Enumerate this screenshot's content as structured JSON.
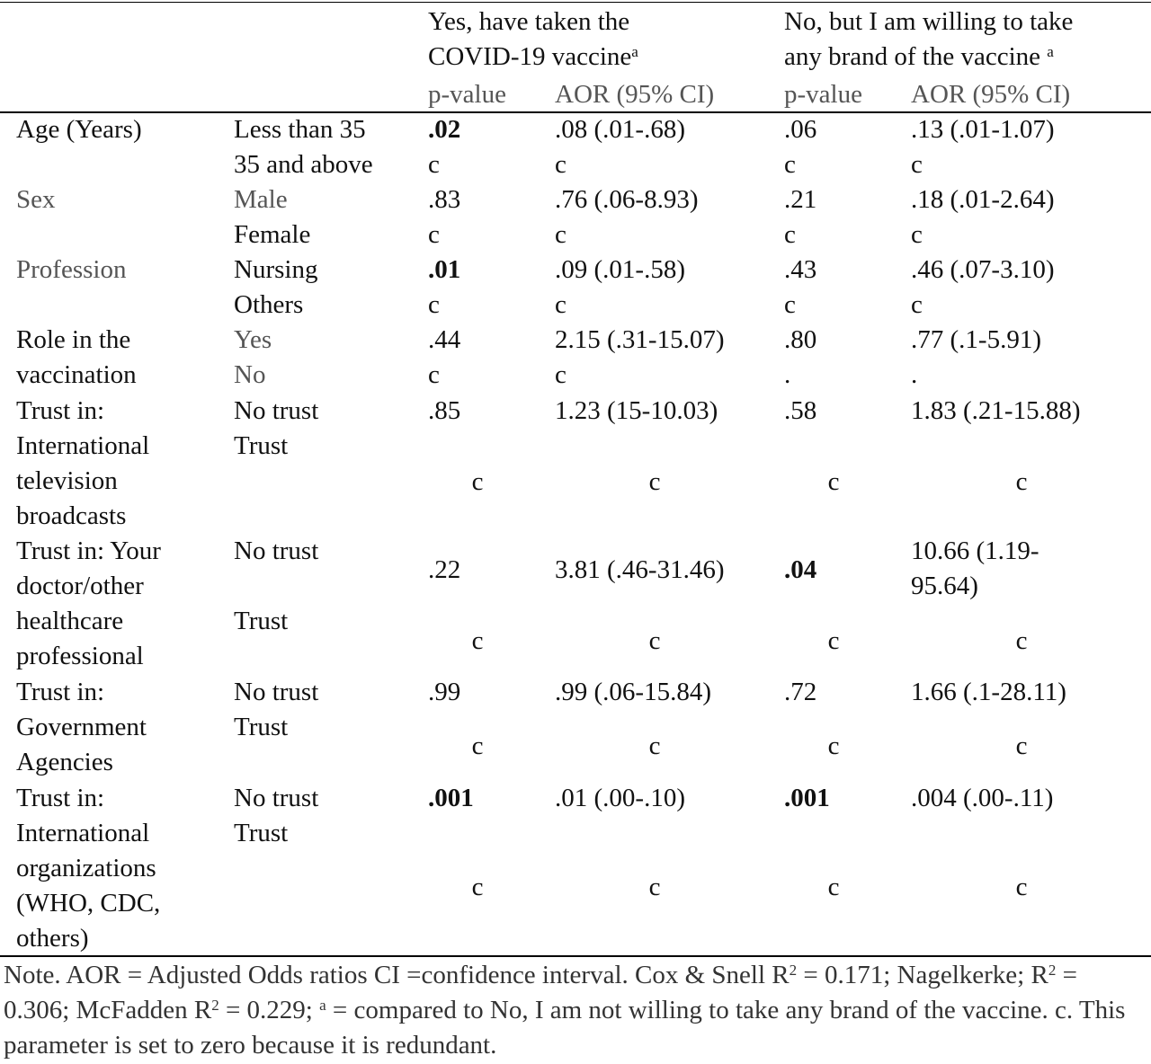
{
  "header": {
    "group1_line1": "Yes, have taken the",
    "group1_line2": "COVID-19 vaccine",
    "group1_sup": "a",
    "group2_line1": "No, but I am willing to take",
    "group2_line2": "any brand of the vaccine",
    "group2_sup": "a",
    "pvalue": "p-value",
    "aor": "AOR (95% CI)"
  },
  "rows": {
    "age": {
      "var": "Age (Years)",
      "cat1": "Less than 35",
      "cat2": "35 and above",
      "p1": ".02",
      "aor1": ".08 (.01-.68)",
      "p2": ".06",
      "aor2": ".13 (.01-1.07)"
    },
    "sex": {
      "var": "Sex",
      "cat1": "Male",
      "cat2": "Female",
      "p1": ".83",
      "aor1": ".76 (.06-8.93)",
      "p2": ".21",
      "aor2": ".18 (.01-2.64)"
    },
    "profession": {
      "var": "Profession",
      "cat1": "Nursing",
      "cat2": "Others",
      "p1": ".01",
      "aor1": ".09 (.01-.58)",
      "p2": ".43",
      "aor2": ".46 (.07-3.10)"
    },
    "role": {
      "var_l1": "Role in the",
      "var_l2": "vaccination",
      "cat1": "Yes",
      "cat2": "No",
      "p1": ".44",
      "aor1": "2.15 (.31-15.07)",
      "p2": ".80",
      "aor2": ".77 (.1-5.91)",
      "ref2": "."
    },
    "tv": {
      "var_l1": "Trust in:",
      "var_l2": "International",
      "var_l3": "television",
      "var_l4": "broadcasts",
      "cat1": "No trust",
      "cat2": "Trust",
      "p1": ".85",
      "aor1": "1.23 (15-10.03)",
      "p2": ".58",
      "aor2": "1.83 (.21-15.88)"
    },
    "doctor": {
      "var_l1": "Trust in: Your",
      "var_l2": "doctor/other",
      "var_l3": "healthcare",
      "var_l4": "professional",
      "cat1": "No trust",
      "cat2": "Trust",
      "p1": ".22",
      "aor1": "3.81 (.46-31.46)",
      "p2": ".04",
      "aor2_l1": "10.66 (1.19-",
      "aor2_l2": "95.64)"
    },
    "gov": {
      "var_l1": "Trust in:",
      "var_l2": "Government",
      "var_l3": "Agencies",
      "cat1": "No trust",
      "cat2": "Trust",
      "p1": ".99",
      "aor1": ".99 (.06-15.84)",
      "p2": ".72",
      "aor2": "1.66 (.1-28.11)"
    },
    "intl": {
      "var_l1": "Trust in:",
      "var_l2": "International",
      "var_l3": "organizations",
      "var_l4": "(WHO, CDC,",
      "var_l5": "others)",
      "cat1": "No trust",
      "cat2": "Trust",
      "p1": ".001",
      "aor1": ".01 (.00-.10)",
      "p2": ".001",
      "aor2": ".004 (.00-.11)"
    }
  },
  "ref": "c",
  "note": {
    "p1": "Note. AOR = Adjusted Odds ratios CI =confidence interval. Cox & Snell R",
    "sup1": "2",
    "p2": " = 0.171; Nagelkerke; R",
    "sup2": "2",
    "p3": " = 0.306; McFadden R",
    "sup3": "2",
    "p4": " = 0.229; ",
    "sup4": "a",
    "p5": " = compared to No, I am not willing to take any brand of the vaccine. c. This parameter is set to zero because it is redundant."
  }
}
